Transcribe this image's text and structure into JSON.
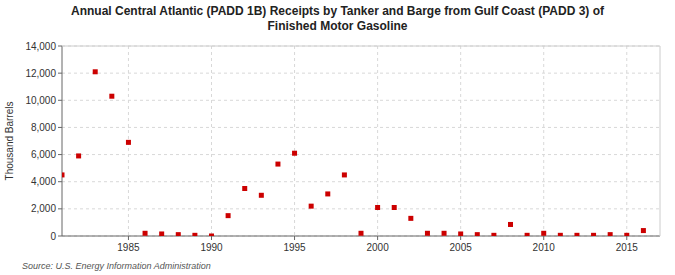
{
  "chart_data": {
    "type": "scatter",
    "title": "Annual Central Atlantic (PADD 1B) Receipts by Tanker and Barge from Gulf Coast (PADD 3) of\nFinished Motor Gasoline",
    "y_label": "Thousand Barrels",
    "annotations": [
      "Source: U.S. Energy Information Administration"
    ],
    "color": "#cc0000",
    "marker": "square",
    "grid": true,
    "xlim": [
      1981,
      2017
    ],
    "ylim": [
      0,
      14000
    ],
    "xticks": [
      1985,
      1990,
      1995,
      2000,
      2005,
      2010,
      2015
    ],
    "yticks": [
      0,
      {
        "value": 2000,
        "label": "2,000"
      },
      {
        "value": 4000,
        "label": "4,000"
      },
      {
        "value": 6000,
        "label": "6,000"
      },
      {
        "value": 8000,
        "label": "8,000"
      },
      {
        "value": 10000,
        "label": "10,000"
      },
      {
        "value": 12000,
        "label": "12,000"
      },
      {
        "value": 14000,
        "label": "14,000"
      }
    ],
    "x": [
      1981,
      1982,
      1983,
      1984,
      1985,
      1986,
      1987,
      1988,
      1989,
      1990,
      1991,
      1992,
      1993,
      1994,
      1995,
      1996,
      1997,
      1998,
      1999,
      2000,
      2001,
      2002,
      2003,
      2004,
      2005,
      2006,
      2007,
      2008,
      2009,
      2010,
      2011,
      2012,
      2013,
      2014,
      2015,
      2016
    ],
    "values": [
      4500,
      5900,
      12100,
      10300,
      6900,
      200,
      150,
      100,
      50,
      0,
      1500,
      3500,
      3000,
      5300,
      6100,
      2200,
      3100,
      4500,
      200,
      2100,
      2100,
      1300,
      200,
      200,
      150,
      100,
      50,
      850,
      50,
      200,
      50,
      50,
      50,
      100,
      50,
      400
    ]
  }
}
